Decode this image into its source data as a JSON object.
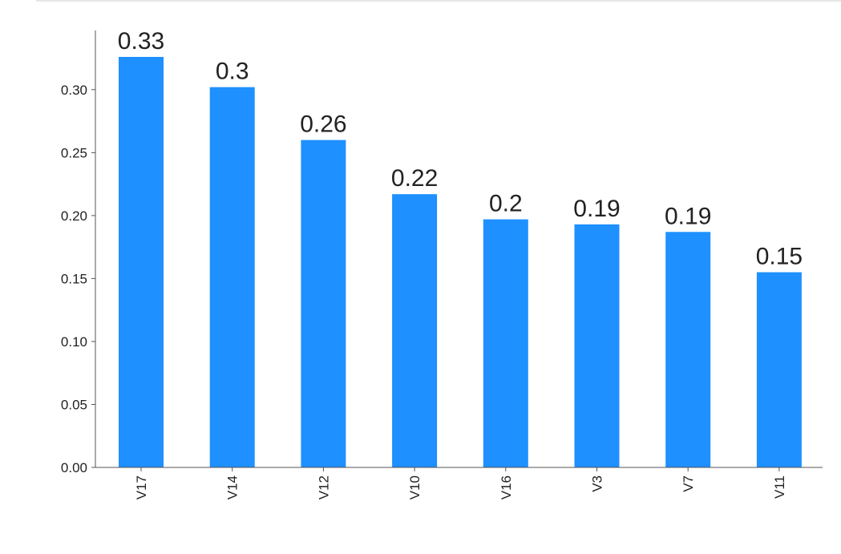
{
  "chart_data": {
    "type": "bar",
    "categories": [
      "V17",
      "V14",
      "V12",
      "V10",
      "V16",
      "V3",
      "V7",
      "V11"
    ],
    "values": [
      0.326,
      0.302,
      0.26,
      0.217,
      0.197,
      0.193,
      0.187,
      0.155
    ],
    "data_labels": [
      "0.33",
      "0.3",
      "0.26",
      "0.22",
      "0.2",
      "0.19",
      "0.19",
      "0.15"
    ],
    "yticks": [
      0.0,
      0.05,
      0.1,
      0.15,
      0.2,
      0.25,
      0.3
    ],
    "ytick_labels": [
      "0.00",
      "0.05",
      "0.10",
      "0.15",
      "0.20",
      "0.25",
      "0.30"
    ],
    "ylim": [
      0,
      0.347
    ],
    "title": "",
    "xlabel": "",
    "ylabel": "",
    "bar_color": "#1e90ff",
    "grid": false,
    "legend": "none"
  }
}
